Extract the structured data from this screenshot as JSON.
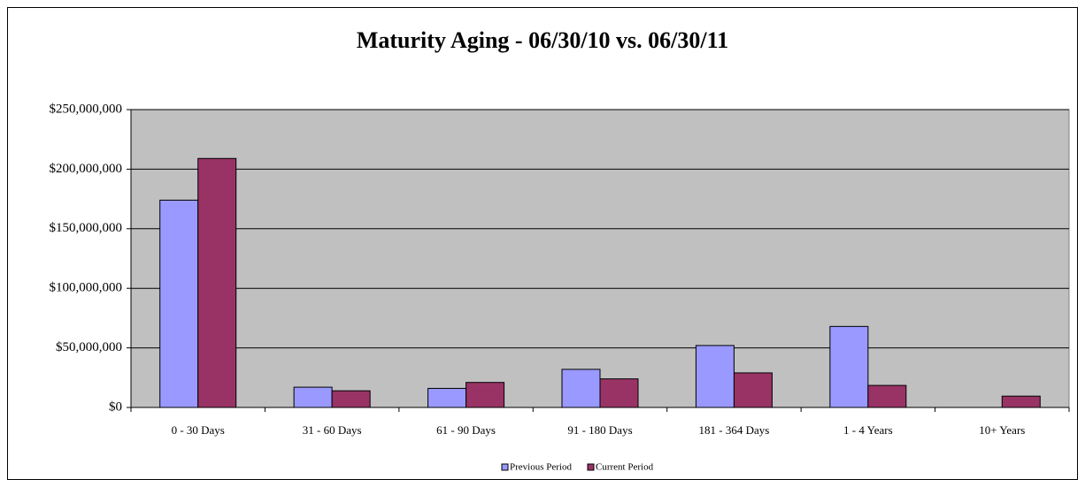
{
  "chart_data": {
    "type": "bar",
    "title": "Maturity Aging - 06/30/10 vs. 06/30/11",
    "categories": [
      "0 - 30 Days",
      "31 - 60 Days",
      "61 - 90 Days",
      "91 - 180 Days",
      "181 - 364 Days",
      "1 - 4 Years",
      "10+ Years"
    ],
    "series": [
      {
        "name": "Previous Period",
        "color": "#9999ff",
        "values": [
          174000000,
          17000000,
          16000000,
          32000000,
          52000000,
          68000000,
          0
        ]
      },
      {
        "name": "Current Period",
        "color": "#993366",
        "values": [
          209000000,
          14000000,
          21000000,
          24000000,
          29000000,
          18500000,
          9500000
        ]
      }
    ],
    "ylim": [
      0,
      250000000
    ],
    "yticks": [
      {
        "value": 0,
        "label": "$0"
      },
      {
        "value": 50000000,
        "label": "$50,000,000"
      },
      {
        "value": 100000000,
        "label": "$100,000,000"
      },
      {
        "value": 150000000,
        "label": "$150,000,000"
      },
      {
        "value": 200000000,
        "label": "$200,000,000"
      },
      {
        "value": 250000000,
        "label": "$250,000,000"
      }
    ],
    "grid": true,
    "legend": "bottom"
  }
}
